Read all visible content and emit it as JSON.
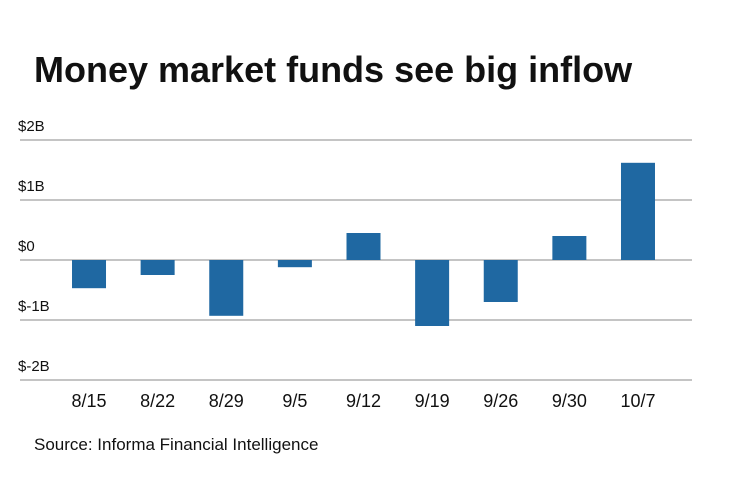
{
  "chart_data": {
    "type": "bar",
    "title": "Money market funds see big inflow",
    "source": "Source: Informa Financial Intelligence",
    "categories": [
      "8/15",
      "8/22",
      "8/29",
      "9/5",
      "9/12",
      "9/19",
      "9/26",
      "9/30",
      "10/7"
    ],
    "values": [
      -0.47,
      -0.25,
      -0.93,
      -0.12,
      0.45,
      -1.1,
      -0.7,
      0.4,
      1.62
    ],
    "color": "#1f68a2",
    "ylim": [
      -2,
      2
    ],
    "yticks": [
      {
        "value": -2,
        "label": "$-2B"
      },
      {
        "value": -1,
        "label": "$-1B"
      },
      {
        "value": 0,
        "label": "$0"
      },
      {
        "value": 1,
        "label": "$1B"
      },
      {
        "value": 2,
        "label": "$2B"
      }
    ],
    "grid": true
  }
}
